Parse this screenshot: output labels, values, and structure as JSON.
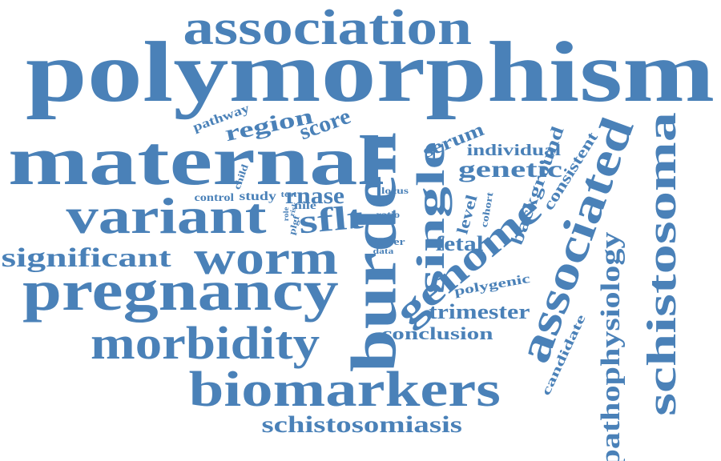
{
  "cloud": {
    "color": "#4a81b8",
    "words": [
      {
        "text": "polymorphism",
        "orientation": "horizontal"
      },
      {
        "text": "association",
        "orientation": "horizontal"
      },
      {
        "text": "maternal",
        "orientation": "horizontal"
      },
      {
        "text": "variant",
        "orientation": "horizontal"
      },
      {
        "text": "pregnancy",
        "orientation": "horizontal"
      },
      {
        "text": "worm",
        "orientation": "horizontal"
      },
      {
        "text": "significant",
        "orientation": "horizontal"
      },
      {
        "text": "morbidity",
        "orientation": "horizontal"
      },
      {
        "text": "biomarkers",
        "orientation": "horizontal"
      },
      {
        "text": "schistosomiasis",
        "orientation": "horizontal"
      },
      {
        "text": "burden",
        "orientation": "vertical"
      },
      {
        "text": "single",
        "orientation": "vertical"
      },
      {
        "text": "genome",
        "orientation": "diagonal"
      },
      {
        "text": "associated",
        "orientation": "vertical"
      },
      {
        "text": "schistosoma",
        "orientation": "vertical"
      },
      {
        "text": "pathophysiology",
        "orientation": "vertical"
      },
      {
        "text": "region",
        "orientation": "diagonal"
      },
      {
        "text": "score",
        "orientation": "diagonal"
      },
      {
        "text": "pathway",
        "orientation": "diagonal"
      },
      {
        "text": "serum",
        "orientation": "diagonal"
      },
      {
        "text": "individual",
        "orientation": "horizontal"
      },
      {
        "text": "genetic",
        "orientation": "horizontal"
      },
      {
        "text": "background",
        "orientation": "vertical"
      },
      {
        "text": "consistent",
        "orientation": "vertical"
      },
      {
        "text": "rnase",
        "orientation": "horizontal"
      },
      {
        "text": "sflt",
        "orientation": "horizontal"
      },
      {
        "text": "nile",
        "orientation": "horizontal"
      },
      {
        "text": "study",
        "orientation": "horizontal"
      },
      {
        "text": "control",
        "orientation": "horizontal"
      },
      {
        "text": "test",
        "orientation": "horizontal"
      },
      {
        "text": "child",
        "orientation": "vertical"
      },
      {
        "text": "role",
        "orientation": "vertical"
      },
      {
        "text": "plgf",
        "orientation": "vertical"
      },
      {
        "text": "risk",
        "orientation": "vertical"
      },
      {
        "text": "locus",
        "orientation": "horizontal"
      },
      {
        "text": "ratio",
        "orientation": "horizontal"
      },
      {
        "text": "lower",
        "orientation": "horizontal"
      },
      {
        "text": "data",
        "orientation": "horizontal"
      },
      {
        "text": "cohort",
        "orientation": "vertical"
      },
      {
        "text": "level",
        "orientation": "vertical"
      },
      {
        "text": "fetal",
        "orientation": "horizontal"
      },
      {
        "text": "polygenic",
        "orientation": "horizontal"
      },
      {
        "text": "trimester",
        "orientation": "horizontal"
      },
      {
        "text": "conclusion",
        "orientation": "horizontal"
      },
      {
        "text": "candidate",
        "orientation": "vertical"
      }
    ]
  }
}
